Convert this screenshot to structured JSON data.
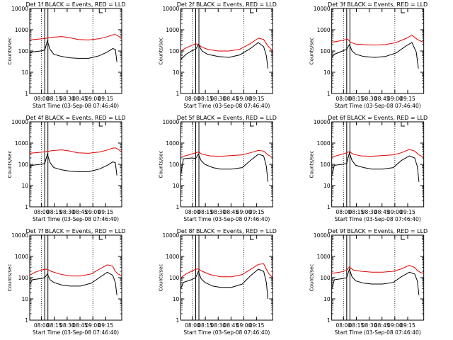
{
  "chart_data": [
    {
      "type": "line",
      "title": "Det 1f BLACK = Events, RED = LLD",
      "xlabel": "Start Time (03-Sep-08 07:46:40)",
      "ylabel": "Counts/sec",
      "yscale": "log",
      "ylim": [
        1,
        10000
      ],
      "x_ticks": [
        "08:00",
        "08:15",
        "08:30",
        "08:45",
        "09:00",
        "09:15"
      ],
      "y_ticks": [
        "1",
        "10",
        "100",
        "1000",
        "10000"
      ],
      "colors": {
        "events": "#000000",
        "lld": "#e00000"
      },
      "series": [
        {
          "key": "lld",
          "x": [
            0,
            25,
            45,
            60,
            75,
            90,
            110,
            130,
            145,
            155,
            160,
            165,
            172
          ],
          "values": [
            330,
            380,
            450,
            480,
            420,
            350,
            330,
            380,
            470,
            580,
            600,
            520,
            380
          ]
        },
        {
          "key": "events",
          "x": [
            0,
            5,
            20,
            28,
            33,
            38,
            45,
            60,
            75,
            90,
            110,
            130,
            145,
            155,
            160,
            163
          ],
          "values": [
            80,
            90,
            100,
            110,
            300,
            120,
            70,
            55,
            48,
            45,
            45,
            60,
            90,
            130,
            120,
            30
          ]
        }
      ],
      "vlines_dotted": [
        22,
        118
      ],
      "vlines_solid": [
        28,
        34
      ]
    },
    {
      "type": "line",
      "title": "Det 2f BLACK = Events, RED = LLD",
      "xlabel": "Start Time (03-Sep-08 07:46:40)",
      "ylabel": "Counts/sec",
      "yscale": "log",
      "ylim": [
        1,
        10000
      ],
      "x_ticks": [
        "08:00",
        "08:15",
        "08:30",
        "08:45",
        "09:00",
        "09:15"
      ],
      "y_ticks": [
        "1",
        "10",
        "100",
        "1000",
        "10000"
      ],
      "colors": {
        "events": "#000000",
        "lld": "#e00000"
      },
      "series": [
        {
          "key": "lld",
          "x": [
            0,
            10,
            20,
            28,
            33,
            40,
            50,
            70,
            90,
            110,
            130,
            145,
            155,
            160,
            165,
            172
          ],
          "values": [
            100,
            140,
            180,
            220,
            200,
            150,
            120,
            100,
            100,
            120,
            220,
            400,
            350,
            220,
            150,
            100
          ]
        },
        {
          "key": "events",
          "x": [
            0,
            10,
            20,
            28,
            33,
            40,
            50,
            70,
            90,
            110,
            130,
            145,
            155,
            160,
            163
          ],
          "values": [
            40,
            70,
            100,
            120,
            200,
            100,
            70,
            55,
            50,
            65,
            130,
            250,
            160,
            60,
            15
          ]
        }
      ],
      "vlines_dotted": [
        22,
        118
      ],
      "vlines_solid": [
        28,
        34
      ]
    },
    {
      "type": "line",
      "title": "Det 3f BLACK = Events, RED = LLD",
      "xlabel": "Start Time (03-Sep-08 07:46:40)",
      "ylabel": "Counts/sec",
      "yscale": "log",
      "ylim": [
        1,
        10000
      ],
      "x_ticks": [
        "08:00",
        "08:15",
        "08:30",
        "08:45",
        "09:00",
        "09:15"
      ],
      "y_ticks": [
        "1",
        "10",
        "100",
        "1000",
        "10000"
      ],
      "colors": {
        "events": "#000000",
        "lld": "#e00000"
      },
      "series": [
        {
          "key": "lld",
          "x": [
            0,
            15,
            30,
            35,
            45,
            60,
            80,
            100,
            120,
            140,
            150,
            160,
            172
          ],
          "values": [
            260,
            300,
            360,
            260,
            210,
            200,
            190,
            200,
            250,
            400,
            560,
            350,
            250
          ]
        },
        {
          "key": "events",
          "x": [
            0,
            5,
            20,
            28,
            33,
            38,
            45,
            60,
            80,
            100,
            120,
            140,
            150,
            158,
            162
          ],
          "values": [
            50,
            70,
            100,
            120,
            200,
            100,
            70,
            55,
            50,
            55,
            80,
            180,
            250,
            90,
            15
          ]
        }
      ],
      "vlines_dotted": [
        22,
        118
      ],
      "vlines_solid": [
        28,
        34
      ]
    },
    {
      "type": "line",
      "title": "Det 4f BLACK = Events, RED = LLD",
      "xlabel": "Start Time (03-Sep-08 07:46:40)",
      "ylabel": "Counts/sec",
      "yscale": "log",
      "ylim": [
        1,
        10000
      ],
      "x_ticks": [
        "08:00",
        "08:15",
        "08:30",
        "08:45",
        "09:00",
        "09:15"
      ],
      "y_ticks": [
        "1",
        "10",
        "100",
        "1000",
        "10000"
      ],
      "colors": {
        "events": "#000000",
        "lld": "#e00000"
      },
      "series": [
        {
          "key": "lld",
          "x": [
            0,
            25,
            45,
            60,
            75,
            90,
            110,
            130,
            145,
            155,
            160,
            165,
            172
          ],
          "values": [
            330,
            380,
            450,
            480,
            420,
            350,
            330,
            380,
            470,
            580,
            600,
            520,
            380
          ]
        },
        {
          "key": "events",
          "x": [
            0,
            5,
            20,
            28,
            33,
            38,
            45,
            60,
            75,
            90,
            110,
            130,
            145,
            155,
            160,
            163
          ],
          "values": [
            80,
            90,
            100,
            110,
            300,
            120,
            70,
            55,
            48,
            45,
            45,
            60,
            90,
            130,
            120,
            30
          ]
        }
      ],
      "vlines_dotted": [
        22,
        118
      ],
      "vlines_solid": [
        28,
        34
      ]
    },
    {
      "type": "line",
      "title": "Det 5f BLACK = Events, RED = LLD",
      "xlabel": "Start Time (03-Sep-08 07:46:40)",
      "ylabel": "Counts/sec",
      "yscale": "log",
      "ylim": [
        1,
        10000
      ],
      "x_ticks": [
        "08:00",
        "08:15",
        "08:30",
        "08:45",
        "09:00",
        "09:15"
      ],
      "y_ticks": [
        "1",
        "10",
        "100",
        "1000",
        "10000"
      ],
      "colors": {
        "events": "#000000",
        "lld": "#e00000"
      },
      "series": [
        {
          "key": "lld",
          "x": [
            0,
            15,
            28,
            33,
            40,
            55,
            75,
            95,
            115,
            130,
            145,
            155,
            160,
            165,
            172
          ],
          "values": [
            220,
            280,
            350,
            380,
            300,
            250,
            240,
            260,
            280,
            350,
            450,
            420,
            320,
            260,
            220
          ]
        },
        {
          "key": "events",
          "x": [
            0,
            5,
            20,
            28,
            33,
            38,
            45,
            60,
            75,
            95,
            115,
            130,
            145,
            155,
            160,
            163
          ],
          "values": [
            30,
            180,
            200,
            190,
            300,
            150,
            100,
            70,
            60,
            60,
            70,
            150,
            300,
            250,
            80,
            15
          ]
        }
      ],
      "vlines_dotted": [
        22,
        118
      ],
      "vlines_solid": [
        28,
        34
      ]
    },
    {
      "type": "line",
      "title": "Det 6f BLACK = Events, RED = LLD",
      "xlabel": "Start Time (03-Sep-08 07:46:40)",
      "ylabel": "Counts/sec",
      "yscale": "log",
      "ylim": [
        1,
        10000
      ],
      "x_ticks": [
        "08:00",
        "08:15",
        "08:30",
        "08:45",
        "09:00",
        "09:15"
      ],
      "y_ticks": [
        "1",
        "10",
        "100",
        "1000",
        "10000"
      ],
      "colors": {
        "events": "#000000",
        "lld": "#e00000"
      },
      "series": [
        {
          "key": "lld",
          "x": [
            0,
            15,
            28,
            33,
            40,
            55,
            75,
            95,
            115,
            130,
            145,
            155,
            160,
            165,
            172
          ],
          "values": [
            220,
            280,
            350,
            400,
            300,
            250,
            240,
            260,
            280,
            350,
            500,
            420,
            320,
            260,
            220
          ]
        },
        {
          "key": "events",
          "x": [
            0,
            5,
            20,
            28,
            33,
            38,
            45,
            60,
            75,
            95,
            115,
            130,
            145,
            155,
            160,
            163
          ],
          "values": [
            30,
            90,
            100,
            110,
            350,
            150,
            90,
            70,
            60,
            60,
            70,
            150,
            250,
            200,
            80,
            15
          ]
        }
      ],
      "vlines_dotted": [
        22,
        118
      ],
      "vlines_solid": [
        28,
        34
      ]
    },
    {
      "type": "line",
      "title": "Det 7f BLACK = Events, RED = LLD",
      "xlabel": "Start Time (03-Sep-08 07:46:40)",
      "ylabel": "Counts/sec",
      "yscale": "log",
      "ylim": [
        1,
        10000
      ],
      "x_ticks": [
        "08:00",
        "08:15",
        "08:30",
        "08:45",
        "09:00",
        "09:15"
      ],
      "y_ticks": [
        "1",
        "10",
        "100",
        "1000",
        "10000"
      ],
      "colors": {
        "events": "#000000",
        "lld": "#e00000"
      },
      "series": [
        {
          "key": "lld",
          "x": [
            0,
            10,
            20,
            28,
            33,
            40,
            55,
            75,
            95,
            115,
            130,
            145,
            155,
            160,
            165,
            172
          ],
          "values": [
            130,
            180,
            220,
            250,
            250,
            200,
            150,
            120,
            120,
            150,
            250,
            400,
            350,
            200,
            150,
            120
          ]
        },
        {
          "key": "events",
          "x": [
            0,
            5,
            20,
            28,
            33,
            38,
            45,
            60,
            75,
            95,
            115,
            130,
            145,
            155,
            160,
            163
          ],
          "values": [
            50,
            80,
            90,
            100,
            150,
            80,
            60,
            45,
            40,
            40,
            55,
            100,
            180,
            130,
            60,
            15
          ]
        }
      ],
      "vlines_dotted": [
        22,
        118
      ],
      "vlines_solid": [
        28,
        34
      ]
    },
    {
      "type": "line",
      "title": "Det 8f BLACK = Events, RED = LLD",
      "xlabel": "Start Time (03-Sep-08 07:46:40)",
      "ylabel": "Counts/sec",
      "yscale": "log",
      "ylim": [
        1,
        10000
      ],
      "x_ticks": [
        "08:00",
        "08:15",
        "08:30",
        "08:45",
        "09:00",
        "09:15"
      ],
      "y_ticks": [
        "1",
        "10",
        "100",
        "1000",
        "10000"
      ],
      "colors": {
        "events": "#000000",
        "lld": "#e00000"
      },
      "series": [
        {
          "key": "lld",
          "x": [
            0,
            10,
            20,
            28,
            33,
            40,
            55,
            75,
            95,
            115,
            130,
            145,
            155,
            160,
            165,
            172
          ],
          "values": [
            100,
            150,
            200,
            250,
            260,
            200,
            140,
            110,
            110,
            140,
            240,
            420,
            450,
            250,
            150,
            100
          ]
        },
        {
          "key": "events",
          "x": [
            0,
            5,
            20,
            28,
            33,
            38,
            45,
            60,
            75,
            95,
            115,
            130,
            145,
            155,
            160,
            163
          ],
          "values": [
            30,
            60,
            80,
            100,
            200,
            90,
            60,
            40,
            35,
            35,
            50,
            120,
            250,
            200,
            60,
            10
          ]
        }
      ],
      "vlines_dotted": [
        22,
        118
      ],
      "vlines_solid": [
        28,
        34
      ]
    },
    {
      "type": "line",
      "title": "Det 9f BLACK = Events, RED = LLD",
      "xlabel": "Start Time (03-Sep-08 07:46:40)",
      "ylabel": "Counts/sec",
      "yscale": "log",
      "ylim": [
        1,
        10000
      ],
      "x_ticks": [
        "08:00",
        "08:15",
        "08:30",
        "08:45",
        "09:00",
        "09:15"
      ],
      "y_ticks": [
        "1",
        "10",
        "100",
        "1000",
        "10000"
      ],
      "colors": {
        "events": "#000000",
        "lld": "#e00000"
      },
      "series": [
        {
          "key": "lld",
          "x": [
            0,
            15,
            28,
            33,
            40,
            55,
            75,
            95,
            115,
            130,
            145,
            155,
            160,
            165,
            172
          ],
          "values": [
            160,
            180,
            220,
            320,
            230,
            200,
            180,
            180,
            200,
            260,
            380,
            300,
            220,
            180,
            160
          ]
        },
        {
          "key": "events",
          "x": [
            0,
            5,
            20,
            28,
            33,
            38,
            45,
            60,
            75,
            95,
            115,
            130,
            145,
            155,
            160,
            163
          ],
          "values": [
            30,
            80,
            90,
            100,
            250,
            110,
            70,
            55,
            50,
            50,
            60,
            110,
            180,
            150,
            70,
            15
          ]
        }
      ],
      "vlines_dotted": [
        22,
        118
      ],
      "vlines_solid": [
        28,
        34
      ]
    }
  ]
}
